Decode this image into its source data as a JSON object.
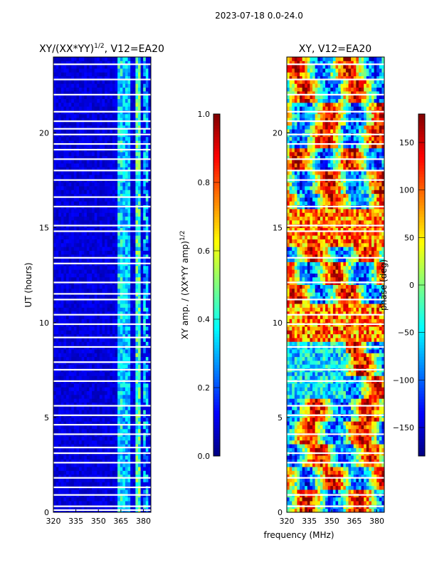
{
  "figure": {
    "suptitle": "2023-07-18 0.0-24.0",
    "xlabel_shared": "frequency (MHz)"
  },
  "chart_data": [
    {
      "type": "heatmap",
      "title_html": "XY/(XX*YY)",
      "title_exponent": "1/2",
      "title_suffix": ", V12=EA20",
      "xlabel": "frequency (MHz)",
      "ylabel": "UT (hours)",
      "xlim": [
        320,
        385
      ],
      "ylim": [
        0,
        24
      ],
      "xticks": [
        "320",
        "335",
        "350",
        "365",
        "380"
      ],
      "xtick_values": [
        320,
        335,
        350,
        365,
        380
      ],
      "yticks": [
        "0",
        "5",
        "10",
        "15",
        "20"
      ],
      "ytick_values": [
        0,
        5,
        10,
        15,
        20
      ],
      "colorbar": {
        "label_main": "XY amp. / (XX*YY amp)",
        "label_exponent": "1/2",
        "range": [
          0.0,
          1.0
        ],
        "ticks": [
          "0.0",
          "0.2",
          "0.4",
          "0.6",
          "0.8",
          "1.0"
        ],
        "tick_values": [
          0.0,
          0.2,
          0.4,
          0.6,
          0.8,
          1.0
        ],
        "colormap": "jet"
      },
      "bright_channel_bands_mhz": [
        {
          "start": 362,
          "end": 366,
          "level": 0.38
        },
        {
          "start": 367,
          "end": 371,
          "level": 0.32
        },
        {
          "start": 374,
          "end": 379,
          "level": 0.45
        },
        {
          "start": 380,
          "end": 383,
          "level": 0.35
        }
      ],
      "flagged_gaps_hours": [
        0.1,
        0.3,
        0.9,
        1.3,
        1.8,
        2.6,
        3.1,
        3.4,
        4.1,
        4.6,
        5.1,
        5.6,
        6.9,
        7.5,
        7.9,
        8.7,
        9.2,
        9.9,
        10.4,
        11.2,
        11.5,
        12.1,
        13.1,
        13.4,
        14.8,
        15.1,
        16.1,
        16.6,
        17.5,
        18.0,
        18.6,
        19.1,
        19.4,
        19.9,
        20.2,
        20.6,
        21.1,
        22.0,
        22.8,
        23.6
      ]
    },
    {
      "type": "heatmap",
      "title": "XY, V12=EA20",
      "xlabel": "frequency (MHz)",
      "ylabel": "",
      "xlim": [
        320,
        385
      ],
      "ylim": [
        0,
        24
      ],
      "xticks": [
        "320",
        "335",
        "350",
        "365",
        "380"
      ],
      "xtick_values": [
        320,
        335,
        350,
        365,
        380
      ],
      "yticks": [
        "0",
        "5",
        "10",
        "15",
        "20"
      ],
      "ytick_values": [
        0,
        5,
        10,
        15,
        20
      ],
      "colorbar": {
        "label": "phase (deg)",
        "range": [
          -180,
          180
        ],
        "ticks": [
          "−150",
          "−100",
          "−50",
          "0",
          "50",
          "100",
          "150"
        ],
        "tick_values": [
          -150,
          -100,
          -50,
          0,
          50,
          100,
          150
        ],
        "colormap": "jet"
      },
      "flagged_gaps_hours": [
        0.3,
        0.9,
        1.8,
        2.6,
        3.1,
        4.1,
        5.1,
        5.6,
        6.9,
        7.5,
        8.7,
        9.9,
        10.4,
        11.2,
        12.1,
        13.4,
        14.8,
        15.1,
        16.1,
        17.5,
        18.0,
        18.6,
        19.4,
        19.9,
        20.6,
        21.1,
        22.0,
        22.8,
        23.6
      ]
    }
  ],
  "colors": {
    "axis": "#000000",
    "background": "#ffffff",
    "gap": "#ffffff"
  }
}
